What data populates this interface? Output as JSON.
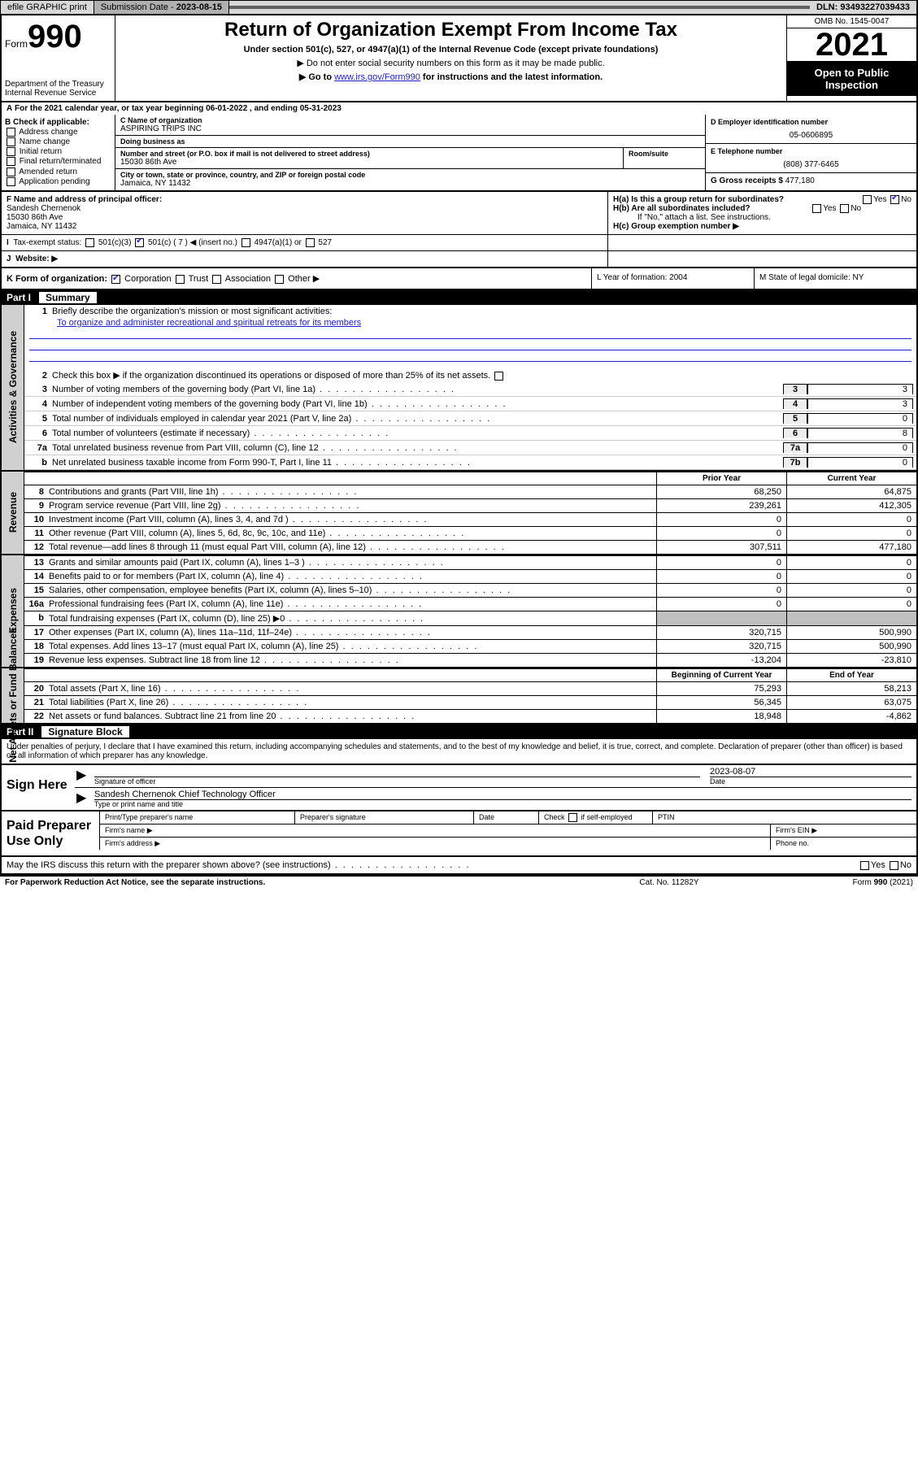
{
  "topbar": {
    "efile": "efile GRAPHIC print",
    "subdate_label": "Submission Date - ",
    "subdate": "2023-08-15",
    "dln_label": "DLN: ",
    "dln": "93493227039433"
  },
  "header": {
    "form_prefix": "Form",
    "form_number": "990",
    "dept": "Department of the Treasury",
    "irs": "Internal Revenue Service",
    "title": "Return of Organization Exempt From Income Tax",
    "subtitle": "Under section 501(c), 527, or 4947(a)(1) of the Internal Revenue Code (except private foundations)",
    "note1": "▶ Do not enter social security numbers on this form as it may be made public.",
    "note2_a": "▶ Go to ",
    "note2_link": "www.irs.gov/Form990",
    "note2_b": " for instructions and the latest information.",
    "omb": "OMB No. 1545-0047",
    "year": "2021",
    "open_public": "Open to Public Inspection"
  },
  "periodA": "For the 2021 calendar year, or tax year beginning 06-01-2022   , and ending 05-31-2023",
  "colB": {
    "hdr": "B Check if applicable:",
    "items": [
      "Address change",
      "Name change",
      "Initial return",
      "Final return/terminated",
      "Amended return",
      "Application pending"
    ]
  },
  "colC": {
    "name_lbl": "C Name of organization",
    "name": "ASPIRING TRIPS INC",
    "dba_lbl": "Doing business as",
    "dba": "",
    "addr_lbl": "Number and street (or P.O. box if mail is not delivered to street address)",
    "addr": "15030 86th Ave",
    "room_lbl": "Room/suite",
    "city_lbl": "City or town, state or province, country, and ZIP or foreign postal code",
    "city": "Jamaica, NY  11432"
  },
  "colD": {
    "ein_lbl": "D Employer identification number",
    "ein": "05-0606895",
    "phone_lbl": "E Telephone number",
    "phone": "(808) 377-6465",
    "gross_lbl": "G Gross receipts $ ",
    "gross": "477,180"
  },
  "rowF": {
    "lbl": "F  Name and address of principal officer:",
    "name": "Sandesh Chernenok",
    "addr1": "15030 86th Ave",
    "addr2": "Jamaica, NY  11432"
  },
  "rowH": {
    "a": "H(a)  Is this a group return for subordinates?",
    "b": "H(b)  Are all subordinates included?",
    "b_note": "If \"No,\" attach a list. See instructions.",
    "c": "H(c)  Group exemption number ▶"
  },
  "rowI": {
    "lbl": "Tax-exempt status:",
    "o1": "501(c)(3)",
    "o2": "501(c) ( 7 ) ◀ (insert no.)",
    "o3": "4947(a)(1) or",
    "o4": "527"
  },
  "rowJ": {
    "lbl": "Website: ▶"
  },
  "rowK": {
    "lbl": "K Form of organization:",
    "o1": "Corporation",
    "o2": "Trust",
    "o3": "Association",
    "o4": "Other ▶",
    "l": "L Year of formation: 2004",
    "m": "M State of legal domicile: NY"
  },
  "part1": {
    "num": "Part I",
    "title": "Summary"
  },
  "gov": {
    "label": "Activities & Governance",
    "l1_lbl": "Briefly describe the organization's mission or most significant activities:",
    "l1_val": "To organize and administer recreational and spiritual retreats for its members",
    "l2": "Check this box ▶      if the organization discontinued its operations or disposed of more than 25% of its net assets.",
    "lines": [
      {
        "n": "3",
        "t": "Number of voting members of the governing body (Part VI, line 1a)",
        "b": "3",
        "v": "3"
      },
      {
        "n": "4",
        "t": "Number of independent voting members of the governing body (Part VI, line 1b)",
        "b": "4",
        "v": "3"
      },
      {
        "n": "5",
        "t": "Total number of individuals employed in calendar year 2021 (Part V, line 2a)",
        "b": "5",
        "v": "0"
      },
      {
        "n": "6",
        "t": "Total number of volunteers (estimate if necessary)",
        "b": "6",
        "v": "8"
      },
      {
        "n": "7a",
        "t": "Total unrelated business revenue from Part VIII, column (C), line 12",
        "b": "7a",
        "v": "0"
      },
      {
        "n": "b",
        "t": "Net unrelated business taxable income from Form 990-T, Part I, line 11",
        "b": "7b",
        "v": "0"
      }
    ]
  },
  "rev": {
    "label": "Revenue",
    "hdr_prior": "Prior Year",
    "hdr_curr": "Current Year",
    "lines": [
      {
        "n": "8",
        "t": "Contributions and grants (Part VIII, line 1h)",
        "p": "68,250",
        "c": "64,875"
      },
      {
        "n": "9",
        "t": "Program service revenue (Part VIII, line 2g)",
        "p": "239,261",
        "c": "412,305"
      },
      {
        "n": "10",
        "t": "Investment income (Part VIII, column (A), lines 3, 4, and 7d )",
        "p": "0",
        "c": "0"
      },
      {
        "n": "11",
        "t": "Other revenue (Part VIII, column (A), lines 5, 6d, 8c, 9c, 10c, and 11e)",
        "p": "0",
        "c": "0"
      },
      {
        "n": "12",
        "t": "Total revenue—add lines 8 through 11 (must equal Part VIII, column (A), line 12)",
        "p": "307,511",
        "c": "477,180"
      }
    ]
  },
  "exp": {
    "label": "Expenses",
    "lines": [
      {
        "n": "13",
        "t": "Grants and similar amounts paid (Part IX, column (A), lines 1–3 )",
        "p": "0",
        "c": "0"
      },
      {
        "n": "14",
        "t": "Benefits paid to or for members (Part IX, column (A), line 4)",
        "p": "0",
        "c": "0"
      },
      {
        "n": "15",
        "t": "Salaries, other compensation, employee benefits (Part IX, column (A), lines 5–10)",
        "p": "0",
        "c": "0"
      },
      {
        "n": "16a",
        "t": "Professional fundraising fees (Part IX, column (A), line 11e)",
        "p": "0",
        "c": "0"
      },
      {
        "n": "b",
        "t": "Total fundraising expenses (Part IX, column (D), line 25) ▶0",
        "p": "",
        "c": "",
        "grey": true
      },
      {
        "n": "17",
        "t": "Other expenses (Part IX, column (A), lines 11a–11d, 11f–24e)",
        "p": "320,715",
        "c": "500,990"
      },
      {
        "n": "18",
        "t": "Total expenses. Add lines 13–17 (must equal Part IX, column (A), line 25)",
        "p": "320,715",
        "c": "500,990"
      },
      {
        "n": "19",
        "t": "Revenue less expenses. Subtract line 18 from line 12",
        "p": "-13,204",
        "c": "-23,810"
      }
    ]
  },
  "net": {
    "label": "Net Assets or Fund Balances",
    "hdr_beg": "Beginning of Current Year",
    "hdr_end": "End of Year",
    "lines": [
      {
        "n": "20",
        "t": "Total assets (Part X, line 16)",
        "p": "75,293",
        "c": "58,213"
      },
      {
        "n": "21",
        "t": "Total liabilities (Part X, line 26)",
        "p": "56,345",
        "c": "63,075"
      },
      {
        "n": "22",
        "t": "Net assets or fund balances. Subtract line 21 from line 20",
        "p": "18,948",
        "c": "-4,862"
      }
    ]
  },
  "part2": {
    "num": "Part II",
    "title": "Signature Block"
  },
  "sig": {
    "intro": "Under penalties of perjury, I declare that I have examined this return, including accompanying schedules and statements, and to the best of my knowledge and belief, it is true, correct, and complete. Declaration of preparer (other than officer) is based on all information of which preparer has any knowledge.",
    "sign_here": "Sign Here",
    "sig_officer": "Signature of officer",
    "date_lbl": "Date",
    "date": "2023-08-07",
    "name_title": "Sandesh Chernenok  Chief Technology Officer",
    "name_title_lbl": "Type or print name and title"
  },
  "prep": {
    "label": "Paid Preparer Use Only",
    "c1": "Print/Type preparer's name",
    "c2": "Preparer's signature",
    "c3": "Date",
    "c4a": "Check",
    "c4b": "if self-employed",
    "c5": "PTIN",
    "firm_name": "Firm's name   ▶",
    "firm_ein": "Firm's EIN ▶",
    "firm_addr": "Firm's address ▶",
    "phone": "Phone no."
  },
  "discuss": {
    "text": "May the IRS discuss this return with the preparer shown above? (see instructions)",
    "yes": "Yes",
    "no": "No"
  },
  "footer": {
    "left": "For Paperwork Reduction Act Notice, see the separate instructions.",
    "mid": "Cat. No. 11282Y",
    "right": "Form 990 (2021)"
  }
}
